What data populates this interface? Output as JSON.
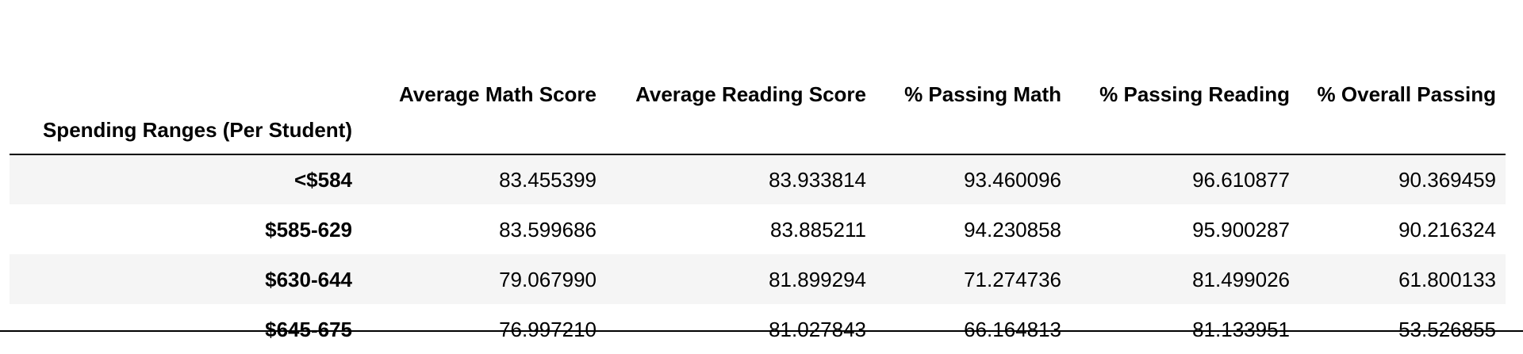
{
  "table": {
    "index_name": "Spending Ranges (Per Student)",
    "columns": [
      "Average Math Score",
      "Average Reading Score",
      "% Passing Math",
      "% Passing Reading",
      "% Overall Passing"
    ],
    "rows": [
      {
        "label": "<$584",
        "values": [
          "83.455399",
          "83.933814",
          "93.460096",
          "96.610877",
          "90.369459"
        ]
      },
      {
        "label": "$585-629",
        "values": [
          "83.599686",
          "83.885211",
          "94.230858",
          "95.900287",
          "90.216324"
        ]
      },
      {
        "label": "$630-644",
        "values": [
          "79.067990",
          "81.899294",
          "71.274736",
          "81.499026",
          "61.800133"
        ]
      },
      {
        "label": "$645-675",
        "values": [
          "76.997210",
          "81.027843",
          "66.164813",
          "81.133951",
          "53.526855"
        ]
      }
    ]
  }
}
